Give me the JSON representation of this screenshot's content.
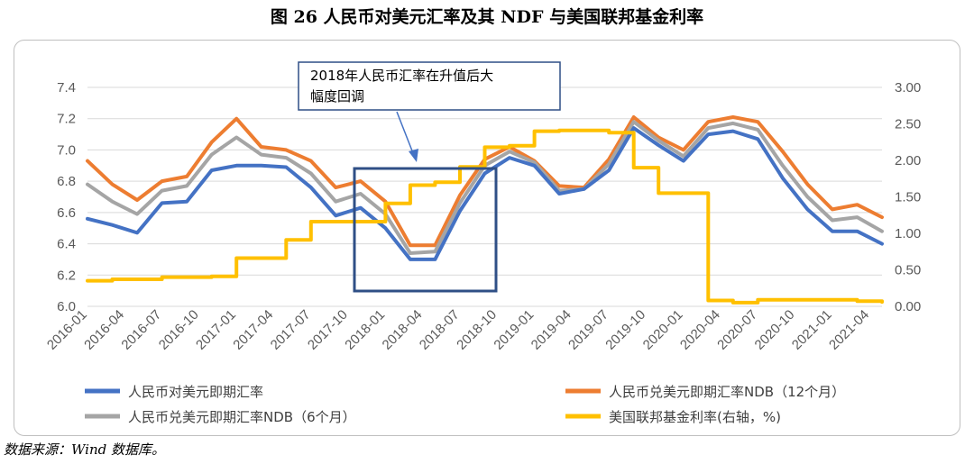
{
  "title": "图 26  人民币对美元汇率及其 NDF 与美国联邦基金利率",
  "source": "数据来源：Wind 数据库。",
  "annotation": {
    "line1": "2018年人民币汇率在升值后大",
    "line2": "幅度回调"
  },
  "colors": {
    "spot": "#4472c4",
    "ndf12": "#ed7d31",
    "ndf6": "#a5a5a5",
    "fed": "#ffc000",
    "box": "#2f4f86",
    "arrow": "#4472c4",
    "grid": "#d9d9d9",
    "axis_text": "#595959"
  },
  "chart_data": {
    "type": "line",
    "x_tick_labels": [
      "2016-01",
      "2016-04",
      "2016-07",
      "2016-10",
      "2017-01",
      "2017-04",
      "2017-07",
      "2017-10",
      "2018-01",
      "2018-04",
      "2018-07",
      "2018-10",
      "2019-01",
      "2019-04",
      "2019-07",
      "2019-10",
      "2020-01",
      "2020-04",
      "2020-07",
      "2020-10",
      "2021-01",
      "2021-04"
    ],
    "x_range": [
      "2016-01",
      "2021-05"
    ],
    "y_left": {
      "range": [
        6.0,
        7.4
      ],
      "ticks": [
        "6.0",
        "6.2",
        "6.4",
        "6.6",
        "6.8",
        "7.0",
        "7.2",
        "7.4"
      ]
    },
    "y_right": {
      "range": [
        0.0,
        3.0
      ],
      "ticks": [
        "0.00",
        "0.50",
        "1.00",
        "1.50",
        "2.00",
        "2.50",
        "3.00"
      ]
    },
    "grid": true,
    "legend_position": "bottom",
    "x": [
      "2016-01",
      "2016-03",
      "2016-05",
      "2016-07",
      "2016-09",
      "2016-11",
      "2017-01",
      "2017-03",
      "2017-05",
      "2017-07",
      "2017-09",
      "2017-11",
      "2018-01",
      "2018-03",
      "2018-05",
      "2018-07",
      "2018-09",
      "2018-11",
      "2019-01",
      "2019-03",
      "2019-05",
      "2019-07",
      "2019-09",
      "2019-11",
      "2020-01",
      "2020-03",
      "2020-05",
      "2020-07",
      "2020-09",
      "2020-11",
      "2021-01",
      "2021-03",
      "2021-05"
    ],
    "series": [
      {
        "name": "人民币对美元即期汇率",
        "axis": "left",
        "color": "#4472c4",
        "values": [
          6.56,
          6.52,
          6.47,
          6.66,
          6.67,
          6.87,
          6.9,
          6.9,
          6.89,
          6.76,
          6.58,
          6.63,
          6.5,
          6.3,
          6.3,
          6.61,
          6.85,
          6.95,
          6.9,
          6.72,
          6.75,
          6.87,
          7.14,
          7.03,
          6.93,
          7.1,
          7.12,
          7.07,
          6.82,
          6.62,
          6.48,
          6.48,
          6.4
        ]
      },
      {
        "name": "人民币兑美元即期汇率NDB（12个月）",
        "axis": "left",
        "color": "#ed7d31",
        "values": [
          6.93,
          6.78,
          6.68,
          6.8,
          6.83,
          7.05,
          7.2,
          7.02,
          7.0,
          6.93,
          6.76,
          6.8,
          6.67,
          6.39,
          6.39,
          6.71,
          6.94,
          7.02,
          6.93,
          6.77,
          6.76,
          6.94,
          7.21,
          7.08,
          7.0,
          7.18,
          7.21,
          7.18,
          6.99,
          6.78,
          6.62,
          6.65,
          6.57
        ]
      },
      {
        "name": "人民币兑美元即期汇率NDB（6个月）",
        "axis": "left",
        "color": "#a5a5a5",
        "values": [
          6.78,
          6.67,
          6.59,
          6.74,
          6.77,
          6.97,
          7.08,
          6.97,
          6.95,
          6.85,
          6.67,
          6.72,
          6.59,
          6.34,
          6.35,
          6.66,
          6.9,
          6.99,
          6.92,
          6.74,
          6.75,
          6.91,
          7.18,
          7.06,
          6.96,
          7.14,
          7.17,
          7.13,
          6.9,
          6.7,
          6.55,
          6.57,
          6.48
        ]
      },
      {
        "name": "美国联邦基金利率(右轴，%)",
        "axis": "right",
        "color": "#ffc000",
        "step": true,
        "values": [
          0.35,
          0.37,
          0.37,
          0.4,
          0.4,
          0.41,
          0.66,
          0.66,
          0.91,
          1.16,
          1.16,
          1.16,
          1.41,
          1.66,
          1.7,
          1.91,
          2.18,
          2.2,
          2.4,
          2.41,
          2.41,
          2.38,
          1.9,
          1.55,
          1.55,
          0.08,
          0.05,
          0.09,
          0.09,
          0.09,
          0.09,
          0.07,
          0.06
        ]
      }
    ]
  }
}
